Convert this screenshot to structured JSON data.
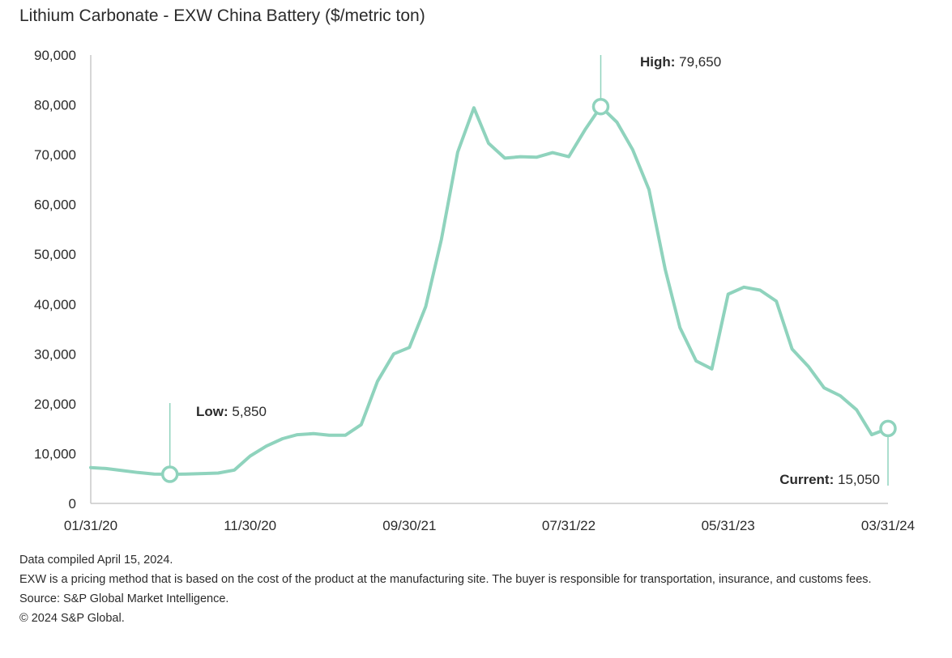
{
  "header": {
    "subtitle": "Lithium Carbonate - EXW China Battery ($/metric ton)"
  },
  "colors": {
    "line": "#8fd3bd",
    "axis": "#c8c8c8",
    "text": "#2b2b2b"
  },
  "chart_data": {
    "type": "line",
    "title": "Lithium Carbonate - EXW China Battery ($/metric ton)",
    "xlabel": "",
    "ylabel": "",
    "ylim": [
      0,
      90000
    ],
    "y_ticks": [
      0,
      10000,
      20000,
      30000,
      40000,
      50000,
      60000,
      70000,
      80000,
      90000
    ],
    "y_tick_labels": [
      "0",
      "10,000",
      "20,000",
      "30,000",
      "40,000",
      "50,000",
      "60,000",
      "70,000",
      "80,000",
      "90,000"
    ],
    "x_tick_labels": [
      "01/31/20",
      "11/30/20",
      "09/30/21",
      "07/31/22",
      "05/31/23",
      "03/31/24"
    ],
    "grid": false,
    "series": [
      {
        "x": [
          "2020-01-31",
          "2020-02-29",
          "2020-03-31",
          "2020-04-30",
          "2020-05-31",
          "2020-06-30",
          "2020-07-31",
          "2020-08-31",
          "2020-09-30",
          "2020-10-31",
          "2020-11-30",
          "2020-12-31",
          "2021-01-31",
          "2021-02-28",
          "2021-03-31",
          "2021-04-30",
          "2021-05-31",
          "2021-06-30",
          "2021-07-31",
          "2021-08-31",
          "2021-09-30",
          "2021-10-31",
          "2021-11-30",
          "2021-12-31",
          "2022-01-31",
          "2022-02-28",
          "2022-03-31",
          "2022-04-30",
          "2022-05-31",
          "2022-06-30",
          "2022-07-31",
          "2022-08-31",
          "2022-09-30",
          "2022-10-31",
          "2022-11-30",
          "2022-12-31",
          "2023-01-31",
          "2023-02-28",
          "2023-03-31",
          "2023-04-30",
          "2023-05-31",
          "2023-06-30",
          "2023-07-31",
          "2023-08-31",
          "2023-09-30",
          "2023-10-31",
          "2023-11-30",
          "2023-12-31",
          "2024-01-31",
          "2024-02-29",
          "2024-03-31"
        ],
        "values": [
          7200,
          7000,
          6600,
          6200,
          5900,
          5850,
          5900,
          6000,
          6100,
          6700,
          9500,
          11500,
          13000,
          13800,
          14000,
          13700,
          13700,
          15800,
          24500,
          30000,
          31300,
          39500,
          53000,
          70500,
          79400,
          72300,
          69300,
          69600,
          69500,
          70400,
          69600,
          75000,
          79650,
          76500,
          71000,
          63000,
          47000,
          35300,
          28600,
          27000,
          42000,
          43400,
          42800,
          40600,
          31000,
          27500,
          23200,
          21600,
          18800,
          13800,
          15050
        ]
      }
    ],
    "annotations": [
      {
        "label": "Low:",
        "value": "5,850"
      },
      {
        "label": "High:",
        "value": "79,650"
      },
      {
        "label": "Current:",
        "value": "15,050"
      }
    ]
  },
  "notes": {
    "compiled": "Data compiled April 15, 2024.",
    "exw": "EXW is a pricing method that is based on the cost of the product at the manufacturing site. The buyer is responsible for transportation, insurance, and customs fees.",
    "source": "Source: S&P Global Market Intelligence.",
    "copyright": "© 2024 S&P Global."
  }
}
